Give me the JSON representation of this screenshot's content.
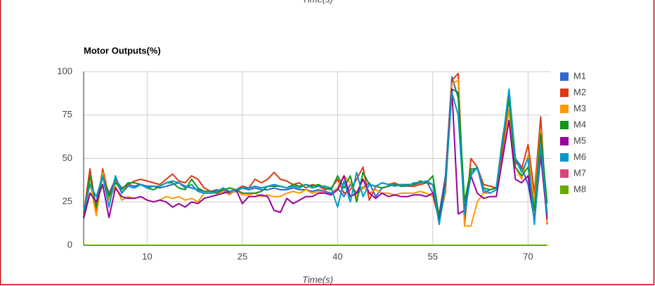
{
  "chart_data": {
    "type": "line",
    "title": "Motor Outputs(%)",
    "x_label": "Time(s)",
    "x": [
      0,
      1,
      2,
      3,
      4,
      5,
      6,
      7,
      8,
      9,
      10,
      11,
      12,
      13,
      14,
      15,
      16,
      17,
      18,
      19,
      20,
      21,
      22,
      23,
      24,
      25,
      26,
      27,
      28,
      29,
      30,
      31,
      32,
      33,
      34,
      35,
      36,
      37,
      38,
      39,
      40,
      41,
      42,
      43,
      44,
      45,
      46,
      47,
      48,
      49,
      50,
      51,
      52,
      53,
      54,
      55,
      56,
      57,
      58,
      59,
      60,
      61,
      62,
      63,
      64,
      65,
      66,
      67,
      68,
      69,
      70,
      71,
      72,
      73
    ],
    "xlim": [
      0,
      73.5
    ],
    "xticks": [
      10,
      25,
      40,
      55,
      70
    ],
    "ylim": [
      0,
      100
    ],
    "yticks": [
      0,
      25,
      50,
      75,
      100
    ],
    "grid": true,
    "series": [
      {
        "name": "M1",
        "color": "#3366cc",
        "values": [
          15,
          30,
          25,
          40,
          30,
          38,
          33,
          35,
          34,
          35,
          34,
          34,
          33,
          34,
          35,
          36,
          34,
          33,
          32,
          31,
          31,
          32,
          31,
          30,
          31,
          33,
          32,
          33,
          32,
          32,
          33,
          32,
          32,
          33,
          32,
          32,
          31,
          32,
          31,
          30,
          33,
          28,
          35,
          30,
          33,
          36,
          28,
          33,
          34,
          35,
          35,
          35,
          35,
          36,
          37,
          30,
          18,
          40,
          97,
          85,
          20,
          42,
          45,
          30,
          32,
          33,
          60,
          88,
          50,
          45,
          35,
          15,
          55,
          18
        ]
      },
      {
        "name": "M2",
        "color": "#dc3912",
        "values": [
          18,
          44,
          20,
          44,
          28,
          38,
          30,
          35,
          37,
          38,
          37,
          36,
          35,
          38,
          41,
          37,
          36,
          40,
          38,
          33,
          31,
          31,
          32,
          31,
          32,
          34,
          33,
          38,
          36,
          38,
          42,
          38,
          37,
          35,
          36,
          33,
          35,
          34,
          32,
          33,
          38,
          30,
          32,
          38,
          45,
          26,
          34,
          36,
          35,
          36,
          34,
          34,
          34,
          35,
          36,
          35,
          15,
          37,
          95,
          99,
          12,
          50,
          45,
          35,
          34,
          33,
          55,
          85,
          48,
          44,
          58,
          30,
          74,
          12
        ]
      },
      {
        "name": "M3",
        "color": "#ff9900",
        "values": [
          16,
          36,
          17,
          42,
          26,
          34,
          26,
          28,
          27,
          28,
          26,
          25,
          26,
          28,
          27,
          28,
          26,
          27,
          25,
          30,
          30,
          30,
          31,
          29,
          32,
          29,
          29,
          30,
          28,
          29,
          28,
          28,
          30,
          31,
          30,
          32,
          30,
          31,
          30,
          29,
          33,
          40,
          36,
          28,
          34,
          30,
          32,
          30,
          30,
          29,
          30,
          30,
          30,
          31,
          30,
          28,
          15,
          30,
          93,
          95,
          11,
          11,
          25,
          30,
          30,
          32,
          50,
          78,
          45,
          38,
          52,
          25,
          66,
          13
        ]
      },
      {
        "name": "M4",
        "color": "#109618",
        "values": [
          16,
          40,
          22,
          40,
          28,
          36,
          32,
          36,
          36,
          35,
          33,
          32,
          34,
          36,
          36,
          33,
          32,
          38,
          33,
          31,
          31,
          30,
          32,
          33,
          32,
          30,
          30,
          30,
          31,
          34,
          34,
          34,
          33,
          35,
          34,
          35,
          34,
          35,
          33,
          32,
          40,
          33,
          40,
          25,
          42,
          35,
          34,
          33,
          34,
          35,
          34,
          35,
          35,
          37,
          36,
          40,
          16,
          36,
          90,
          88,
          25,
          44,
          44,
          33,
          32,
          33,
          62,
          84,
          45,
          40,
          45,
          20,
          64,
          24
        ]
      },
      {
        "name": "M5",
        "color": "#990099",
        "values": [
          16,
          30,
          25,
          35,
          16,
          33,
          28,
          27,
          27,
          28,
          26,
          25,
          26,
          25,
          22,
          24,
          22,
          25,
          24,
          27,
          28,
          29,
          30,
          31,
          32,
          24,
          28,
          28,
          29,
          28,
          20,
          19,
          27,
          24,
          26,
          28,
          28,
          30,
          30,
          29,
          32,
          40,
          28,
          30,
          38,
          30,
          27,
          30,
          28,
          29,
          28,
          28,
          29,
          29,
          28,
          30,
          14,
          36,
          90,
          18,
          20,
          40,
          30,
          27,
          28,
          28,
          50,
          72,
          38,
          36,
          40,
          14,
          52,
          15
        ]
      },
      {
        "name": "M6",
        "color": "#0099c6",
        "values": [
          20,
          35,
          28,
          40,
          22,
          40,
          30,
          34,
          33,
          35,
          33,
          34,
          34,
          36,
          37,
          36,
          33,
          35,
          31,
          30,
          30,
          31,
          33,
          31,
          32,
          33,
          33,
          34,
          33,
          34,
          35,
          34,
          33,
          34,
          33,
          35,
          33,
          34,
          34,
          33,
          22,
          37,
          25,
          42,
          28,
          35,
          34,
          36,
          35,
          34,
          35,
          34,
          36,
          36,
          37,
          35,
          12,
          34,
          88,
          75,
          18,
          40,
          45,
          32,
          30,
          32,
          60,
          90,
          50,
          42,
          50,
          12,
          58,
          18
        ]
      },
      {
        "name": "M7",
        "color": "#dd4477",
        "values": [
          0,
          0,
          0,
          0,
          0,
          0,
          0,
          0,
          0,
          0,
          0,
          0,
          0,
          0,
          0,
          0,
          0,
          0,
          0,
          0,
          0,
          0,
          0,
          0,
          0,
          0,
          0,
          0,
          0,
          0,
          0,
          0,
          0,
          0,
          0,
          0,
          0,
          0,
          0,
          0,
          0,
          0,
          0,
          0,
          0,
          0,
          0,
          0,
          0,
          0,
          0,
          0,
          0,
          0,
          0,
          0,
          0,
          0,
          0,
          0,
          0,
          0,
          0,
          0,
          0,
          0,
          0,
          0,
          0,
          0,
          0,
          0,
          0,
          0
        ]
      },
      {
        "name": "M8",
        "color": "#66aa00",
        "values": [
          0,
          0,
          0,
          0,
          0,
          0,
          0,
          0,
          0,
          0,
          0,
          0,
          0,
          0,
          0,
          0,
          0,
          0,
          0,
          0,
          0,
          0,
          0,
          0,
          0,
          0,
          0,
          0,
          0,
          0,
          0,
          0,
          0,
          0,
          0,
          0,
          0,
          0,
          0,
          0,
          0,
          0,
          0,
          0,
          0,
          0,
          0,
          0,
          0,
          0,
          0,
          0,
          0,
          0,
          0,
          0,
          0,
          0,
          0,
          0,
          0,
          0,
          0,
          0,
          0,
          0,
          0,
          0,
          0,
          0,
          0,
          0,
          0,
          0
        ]
      }
    ]
  }
}
